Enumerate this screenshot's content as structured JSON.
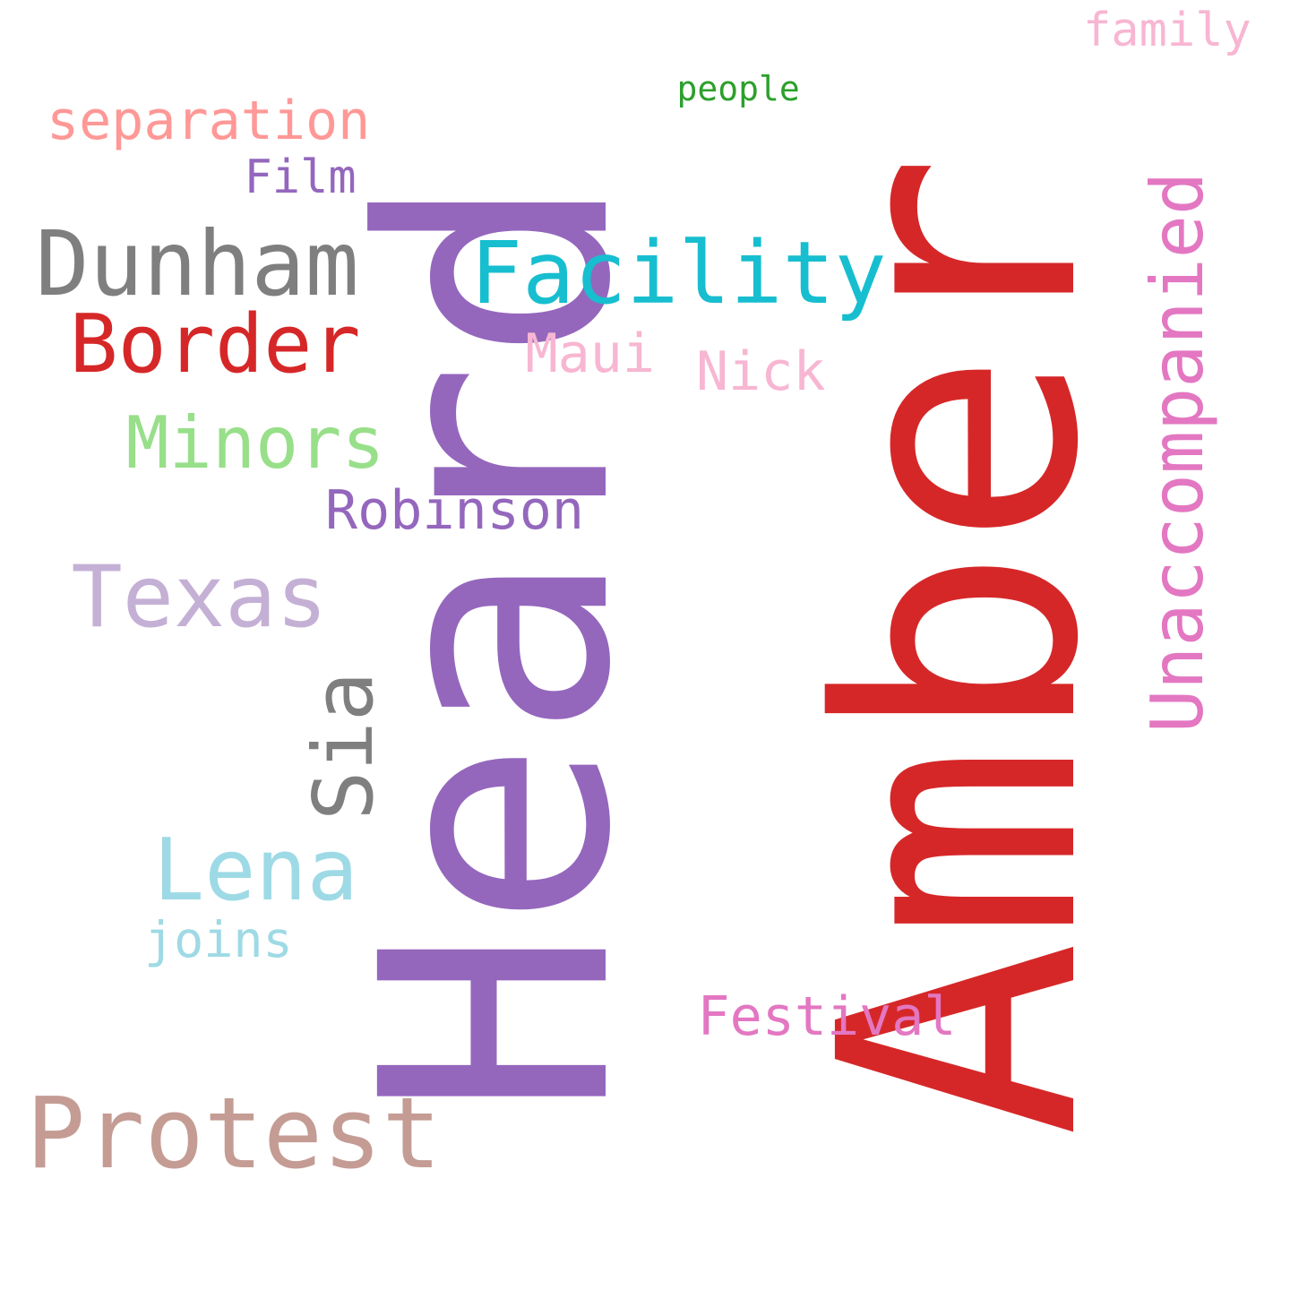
{
  "words": [
    {
      "id": "amber",
      "text": "Amber",
      "color": "#d62728",
      "orientation": "vertical"
    },
    {
      "id": "heard",
      "text": "Heard",
      "color": "#9467bd",
      "orientation": "vertical"
    },
    {
      "id": "unaccompanied",
      "text": "Unaccompanied",
      "color": "#e377c2",
      "orientation": "vertical"
    },
    {
      "id": "sia",
      "text": "Sia",
      "color": "#7f7f7f",
      "orientation": "vertical"
    },
    {
      "id": "family",
      "text": "family",
      "color": "#f7b6d2",
      "orientation": "horizontal"
    },
    {
      "id": "people",
      "text": "people",
      "color": "#2ca02c",
      "orientation": "horizontal"
    },
    {
      "id": "separation",
      "text": "separation",
      "color": "#ff9896",
      "orientation": "horizontal"
    },
    {
      "id": "film",
      "text": "Film",
      "color": "#9467bd",
      "orientation": "horizontal"
    },
    {
      "id": "dunham",
      "text": "Dunham",
      "color": "#7f7f7f",
      "orientation": "horizontal"
    },
    {
      "id": "facility",
      "text": "Facility",
      "color": "#17becf",
      "orientation": "horizontal"
    },
    {
      "id": "border",
      "text": "Border",
      "color": "#d62728",
      "orientation": "horizontal"
    },
    {
      "id": "maui",
      "text": "Maui",
      "color": "#f7b6d2",
      "orientation": "horizontal"
    },
    {
      "id": "nick",
      "text": "Nick",
      "color": "#f7b6d2",
      "orientation": "horizontal"
    },
    {
      "id": "minors",
      "text": "Minors",
      "color": "#98df8a",
      "orientation": "horizontal"
    },
    {
      "id": "robinson",
      "text": "Robinson",
      "color": "#9467bd",
      "orientation": "horizontal"
    },
    {
      "id": "texas",
      "text": "Texas",
      "color": "#c5b0d5",
      "orientation": "horizontal"
    },
    {
      "id": "lena",
      "text": "Lena",
      "color": "#9edae5",
      "orientation": "horizontal"
    },
    {
      "id": "joins",
      "text": "joins",
      "color": "#9edae5",
      "orientation": "horizontal"
    },
    {
      "id": "festival",
      "text": "Festival",
      "color": "#e377c2",
      "orientation": "horizontal"
    },
    {
      "id": "protest",
      "text": "Protest",
      "color": "#c49c94",
      "orientation": "horizontal"
    }
  ]
}
